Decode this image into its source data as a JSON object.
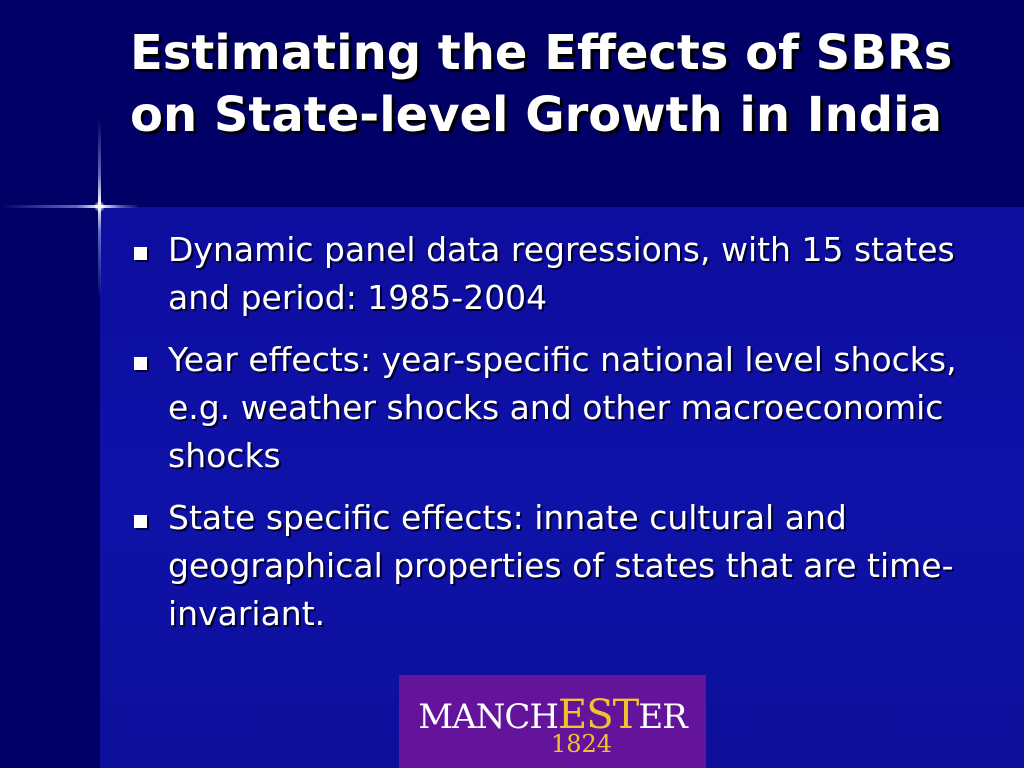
{
  "slide": {
    "title": "Estimating the Effects of SBRs on State-level Growth in India",
    "bullets": [
      "Dynamic panel data regressions, with 15 states and period: 1985-2004",
      "Year effects: year-specific national level shocks, e.g. weather shocks and other macroeconomic shocks",
      "State specific effects: innate cultural and geographical properties of states that are time-invariant."
    ]
  },
  "logo": {
    "word_part1": "MANCH",
    "word_highlight1": "E",
    "word_highlight2": "ST",
    "word_part2": "ER",
    "year": "1824",
    "background_color": "#64149a",
    "highlight_color": "#f2c12e"
  },
  "colors": {
    "background": "#000066",
    "panel": "#0f12a8",
    "text": "#ffffff"
  }
}
